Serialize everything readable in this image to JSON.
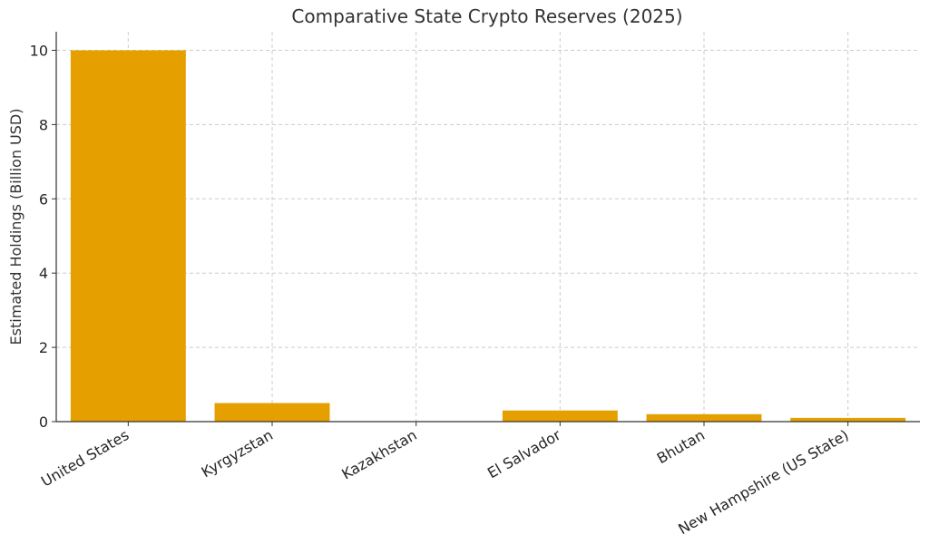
{
  "chart_data": {
    "type": "bar",
    "title": "Comparative State Crypto Reserves (2025)",
    "xlabel": "",
    "ylabel": "Estimated Holdings (Billion USD)",
    "categories": [
      "United States",
      "Kyrgyzstan",
      "Kazakhstan",
      "El Salvador",
      "Bhutan",
      "New Hampshire (US State)"
    ],
    "values": [
      10,
      0.5,
      0,
      0.3,
      0.2,
      0.1
    ],
    "ylim": [
      0,
      10.5
    ],
    "yticks": [
      "0",
      "2",
      "4",
      "6",
      "8",
      "10"
    ],
    "grid": true,
    "bar_color": "#E5A000"
  }
}
